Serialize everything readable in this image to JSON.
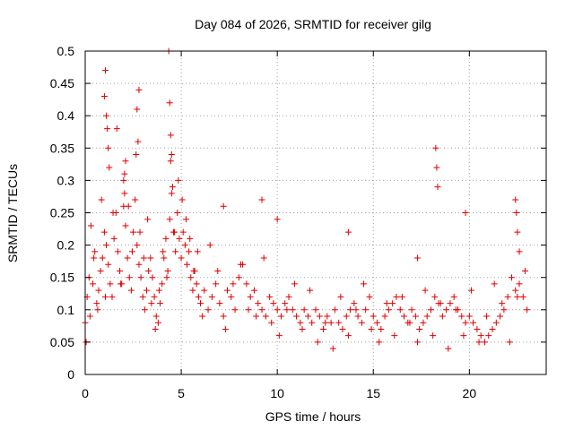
{
  "chart_data": {
    "type": "scatter",
    "title": "Day 084 of 2026, SRMTID for receiver gilg",
    "xlabel": "GPS time / hours",
    "ylabel": "SRMTID / TECUs",
    "xlim": [
      0,
      24
    ],
    "ylim": [
      0,
      0.5
    ],
    "xticks": [
      0,
      5,
      10,
      15,
      20
    ],
    "yticks": [
      0,
      0.05,
      0.1,
      0.15,
      0.2,
      0.25,
      0.3,
      0.35,
      0.4,
      0.45,
      0.5
    ],
    "xtick_labels": [
      "0",
      "5",
      "10",
      "15",
      "20"
    ],
    "ytick_labels": [
      "0",
      "0.05",
      "0.1",
      "0.15",
      "0.2",
      "0.25",
      "0.3",
      "0.35",
      "0.4",
      "0.45",
      "0.5"
    ],
    "grid": true,
    "marker": "+",
    "color": "#e00000",
    "series": [
      {
        "name": "SRMTID",
        "x": [
          0.0,
          0.1,
          0.2,
          0.3,
          0.4,
          0.5,
          0.6,
          0.7,
          0.8,
          0.9,
          1.0,
          1.1,
          1.2,
          1.3,
          1.4,
          1.5,
          1.6,
          1.7,
          1.8,
          1.9,
          2.0,
          2.1,
          2.2,
          2.3,
          2.4,
          2.5,
          2.6,
          2.7,
          2.8,
          2.9,
          3.0,
          3.1,
          3.2,
          3.3,
          3.4,
          3.5,
          3.6,
          3.7,
          3.8,
          3.9,
          4.0,
          4.1,
          4.2,
          4.3,
          4.4,
          4.5,
          4.6,
          4.7,
          4.8,
          4.9,
          5.0,
          5.1,
          5.2,
          5.3,
          5.4,
          5.5,
          5.6,
          5.7,
          5.8,
          5.9,
          6.0,
          6.2,
          6.4,
          6.6,
          6.8,
          7.0,
          7.2,
          7.4,
          7.6,
          7.8,
          8.0,
          8.2,
          8.4,
          8.6,
          8.8,
          9.0,
          9.2,
          9.4,
          9.6,
          9.8,
          10.0,
          10.2,
          10.4,
          10.6,
          10.8,
          11.0,
          11.2,
          11.4,
          11.6,
          11.8,
          12.0,
          12.2,
          12.4,
          12.6,
          12.8,
          13.0,
          13.2,
          13.4,
          13.6,
          13.8,
          14.0,
          14.2,
          14.4,
          14.6,
          14.8,
          15.0,
          15.2,
          15.4,
          15.6,
          15.8,
          16.0,
          16.2,
          16.4,
          16.6,
          16.8,
          17.0,
          17.2,
          17.4,
          17.6,
          17.8,
          18.0,
          18.2,
          18.4,
          18.6,
          18.8,
          19.0,
          19.2,
          19.4,
          19.6,
          19.8,
          20.0,
          20.2,
          20.4,
          20.6,
          20.8,
          21.0,
          21.2,
          21.4,
          21.6,
          21.8,
          22.0,
          22.2,
          22.4,
          22.6,
          22.8,
          23.0,
          0.05,
          0.25,
          0.45,
          0.65,
          0.85,
          1.05,
          1.25,
          1.45,
          1.65,
          1.85,
          2.05,
          2.25,
          2.45,
          2.65,
          2.85,
          3.05,
          3.25,
          3.45,
          3.65,
          3.85,
          4.05,
          4.25,
          4.45,
          4.65,
          4.85,
          5.05,
          5.25,
          5.45,
          5.65,
          5.85,
          6.1,
          6.5,
          6.9,
          7.3,
          7.7,
          8.1,
          8.5,
          8.9,
          9.3,
          9.7,
          10.1,
          10.5,
          10.9,
          11.3,
          11.7,
          12.1,
          12.5,
          12.9,
          13.3,
          13.7,
          14.1,
          14.5,
          14.9,
          15.3,
          15.7,
          16.1,
          16.5,
          16.9,
          17.3,
          17.7,
          18.1,
          18.5,
          18.9,
          19.3,
          19.7,
          20.1,
          20.5,
          20.9,
          21.3,
          21.7,
          22.1,
          22.5,
          22.9,
          1.0,
          1.05,
          1.1,
          1.15,
          1.2,
          2.0,
          2.05,
          2.1,
          2.7,
          2.75,
          2.8,
          4.35,
          4.4,
          4.45,
          4.5,
          4.55,
          7.2,
          9.2,
          10.0,
          13.7,
          17.3,
          18.25,
          18.3,
          18.35,
          19.8,
          22.4,
          22.45,
          22.5,
          22.6
        ],
        "y": [
          0.08,
          0.12,
          0.15,
          0.23,
          0.14,
          0.19,
          0.11,
          0.13,
          0.16,
          0.18,
          0.22,
          0.2,
          0.17,
          0.14,
          0.12,
          0.21,
          0.25,
          0.19,
          0.16,
          0.14,
          0.26,
          0.23,
          0.18,
          0.15,
          0.13,
          0.22,
          0.27,
          0.2,
          0.17,
          0.15,
          0.12,
          0.1,
          0.13,
          0.16,
          0.18,
          0.15,
          0.12,
          0.09,
          0.08,
          0.11,
          0.14,
          0.18,
          0.21,
          0.16,
          0.24,
          0.28,
          0.22,
          0.19,
          0.25,
          0.21,
          0.18,
          0.22,
          0.2,
          0.17,
          0.19,
          0.15,
          0.13,
          0.16,
          0.14,
          0.12,
          0.11,
          0.13,
          0.1,
          0.12,
          0.14,
          0.11,
          0.09,
          0.13,
          0.12,
          0.1,
          0.15,
          0.17,
          0.14,
          0.12,
          0.13,
          0.11,
          0.1,
          0.09,
          0.12,
          0.11,
          0.1,
          0.09,
          0.11,
          0.12,
          0.1,
          0.09,
          0.08,
          0.1,
          0.09,
          0.08,
          0.1,
          0.09,
          0.07,
          0.09,
          0.08,
          0.1,
          0.08,
          0.07,
          0.09,
          0.1,
          0.11,
          0.09,
          0.08,
          0.1,
          0.12,
          0.09,
          0.08,
          0.07,
          0.09,
          0.1,
          0.11,
          0.12,
          0.1,
          0.09,
          0.08,
          0.1,
          0.09,
          0.07,
          0.08,
          0.09,
          0.1,
          0.12,
          0.11,
          0.09,
          0.1,
          0.11,
          0.12,
          0.1,
          0.09,
          0.08,
          0.09,
          0.08,
          0.07,
          0.06,
          0.05,
          0.06,
          0.07,
          0.08,
          0.09,
          0.1,
          0.12,
          0.15,
          0.13,
          0.14,
          0.12,
          0.1,
          0.05,
          0.09,
          0.18,
          0.1,
          0.27,
          0.12,
          0.32,
          0.25,
          0.38,
          0.14,
          0.31,
          0.26,
          0.19,
          0.34,
          0.22,
          0.18,
          0.24,
          0.11,
          0.07,
          0.13,
          0.19,
          0.15,
          0.33,
          0.22,
          0.3,
          0.27,
          0.24,
          0.21,
          0.16,
          0.19,
          0.09,
          0.2,
          0.16,
          0.07,
          0.14,
          0.17,
          0.1,
          0.09,
          0.18,
          0.08,
          0.06,
          0.1,
          0.14,
          0.07,
          0.13,
          0.05,
          0.08,
          0.04,
          0.12,
          0.06,
          0.1,
          0.14,
          0.07,
          0.05,
          0.11,
          0.06,
          0.12,
          0.08,
          0.05,
          0.13,
          0.06,
          0.11,
          0.04,
          0.1,
          0.06,
          0.13,
          0.05,
          0.09,
          0.14,
          0.11,
          0.05,
          0.12,
          0.16,
          0.43,
          0.47,
          0.4,
          0.38,
          0.35,
          0.3,
          0.28,
          0.33,
          0.41,
          0.36,
          0.44,
          0.5,
          0.42,
          0.37,
          0.34,
          0.29,
          0.26,
          0.27,
          0.24,
          0.22,
          0.18,
          0.35,
          0.32,
          0.29,
          0.25,
          0.27,
          0.25,
          0.22,
          0.19
        ]
      }
    ]
  }
}
